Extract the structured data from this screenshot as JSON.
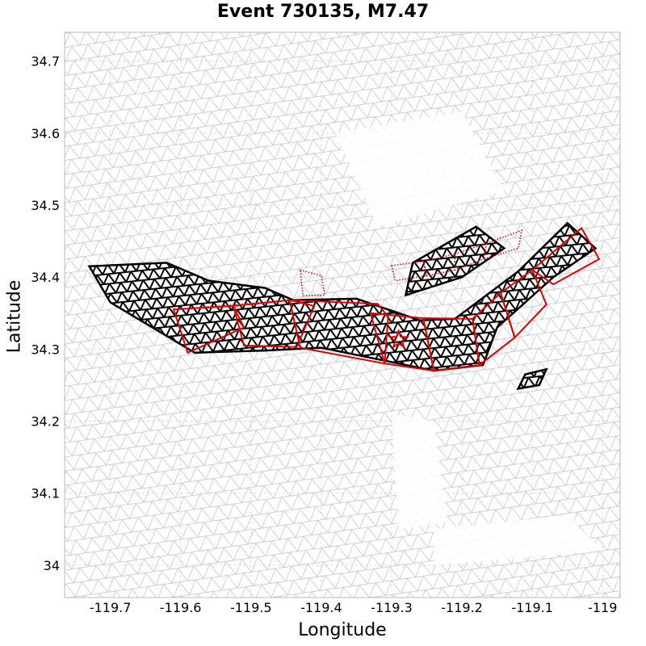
{
  "chart_data": {
    "type": "scatter",
    "title": "Event 730135, M7.47",
    "xlabel": "Longitude",
    "ylabel": "Latitude",
    "xlim": [
      -119.765,
      -118.975
    ],
    "ylim": [
      33.955,
      34.74
    ],
    "grid": true,
    "x_ticks": [
      -119.7,
      -119.6,
      -119.5,
      -119.4,
      -119.3,
      -119.2,
      -119.1,
      -119.0
    ],
    "x_tick_labels": [
      "-119.7",
      "-119.6",
      "-119.5",
      "-119.4",
      "-119.3",
      "-119.2",
      "-119.1",
      "-119"
    ],
    "y_ticks": [
      34.0,
      34.1,
      34.2,
      34.3,
      34.4,
      34.5,
      34.6,
      34.7
    ],
    "y_tick_labels": [
      "34",
      "34.1",
      "34.2",
      "34.3",
      "34.4",
      "34.5",
      "34.6",
      "34.7"
    ],
    "colors": {
      "background_mesh": "#cccccc",
      "ruptured_mesh": "#000000",
      "fault_outline": "#e00000",
      "hypocenter": "#e00000",
      "grid": "#dddddd"
    },
    "hypocenter": {
      "lon": -119.29,
      "lat": 34.313
    },
    "ruptured_patches": [
      {
        "outline": [
          [
            -119.73,
            34.415
          ],
          [
            -119.62,
            34.42
          ],
          [
            -119.56,
            34.395
          ],
          [
            -119.48,
            34.385
          ],
          [
            -119.44,
            34.368
          ],
          [
            -119.35,
            34.37
          ],
          [
            -119.26,
            34.34
          ],
          [
            -119.21,
            34.342
          ],
          [
            -119.12,
            34.408
          ],
          [
            -119.05,
            34.475
          ],
          [
            -119.01,
            34.44
          ],
          [
            -119.07,
            34.4
          ],
          [
            -119.15,
            34.33
          ],
          [
            -119.17,
            34.278
          ],
          [
            -119.24,
            34.27
          ],
          [
            -119.32,
            34.286
          ],
          [
            -119.4,
            34.302
          ],
          [
            -119.48,
            34.298
          ],
          [
            -119.58,
            34.295
          ],
          [
            -119.7,
            34.365
          ]
        ]
      },
      {
        "outline": [
          [
            -119.27,
            34.42
          ],
          [
            -119.18,
            34.47
          ],
          [
            -119.14,
            34.44
          ],
          [
            -119.2,
            34.4
          ],
          [
            -119.28,
            34.375
          ]
        ]
      },
      {
        "outline": [
          [
            -119.11,
            34.265
          ],
          [
            -119.08,
            34.272
          ],
          [
            -119.09,
            34.25
          ],
          [
            -119.12,
            34.245
          ]
        ]
      }
    ],
    "fault_segments": [
      {
        "style": "solid",
        "points": [
          [
            -119.61,
            34.355
          ],
          [
            -119.525,
            34.36
          ],
          [
            -119.51,
            34.33
          ],
          [
            -119.59,
            34.295
          ]
        ]
      },
      {
        "style": "solid",
        "points": [
          [
            -119.525,
            34.36
          ],
          [
            -119.445,
            34.368
          ],
          [
            -119.41,
            34.36
          ],
          [
            -119.435,
            34.303
          ],
          [
            -119.51,
            34.305
          ]
        ]
      },
      {
        "style": "solid",
        "points": [
          [
            -119.445,
            34.368
          ],
          [
            -119.32,
            34.363
          ],
          [
            -119.305,
            34.345
          ],
          [
            -119.31,
            34.28
          ],
          [
            -119.43,
            34.302
          ]
        ]
      },
      {
        "style": "solid",
        "points": [
          [
            -119.33,
            34.35
          ],
          [
            -119.255,
            34.343
          ],
          [
            -119.24,
            34.27
          ],
          [
            -119.31,
            34.28
          ]
        ]
      },
      {
        "style": "solid",
        "points": [
          [
            -119.255,
            34.343
          ],
          [
            -119.185,
            34.342
          ],
          [
            -119.175,
            34.278
          ],
          [
            -119.24,
            34.27
          ]
        ]
      },
      {
        "style": "solid",
        "points": [
          [
            -119.185,
            34.342
          ],
          [
            -119.145,
            34.378
          ],
          [
            -119.125,
            34.316
          ],
          [
            -119.175,
            34.278
          ]
        ]
      },
      {
        "style": "solid",
        "points": [
          [
            -119.145,
            34.378
          ],
          [
            -119.1,
            34.41
          ],
          [
            -119.08,
            34.362
          ],
          [
            -119.125,
            34.316
          ]
        ]
      },
      {
        "style": "solid",
        "points": [
          [
            -119.1,
            34.41
          ],
          [
            -119.03,
            34.468
          ],
          [
            -119.005,
            34.425
          ],
          [
            -119.07,
            34.39
          ]
        ]
      },
      {
        "style": "dotted",
        "points": [
          [
            -119.61,
            34.355
          ],
          [
            -119.445,
            34.368
          ]
        ]
      },
      {
        "style": "dotted",
        "points": [
          [
            -119.43,
            34.41
          ],
          [
            -119.4,
            34.402
          ],
          [
            -119.395,
            34.375
          ],
          [
            -119.426,
            34.374
          ]
        ]
      },
      {
        "style": "dotted",
        "points": [
          [
            -119.3,
            34.416
          ],
          [
            -119.255,
            34.422
          ],
          [
            -119.25,
            34.402
          ],
          [
            -119.295,
            34.395
          ]
        ]
      },
      {
        "style": "dotted",
        "points": [
          [
            -119.255,
            34.422
          ],
          [
            -119.21,
            34.432
          ],
          [
            -119.21,
            34.41
          ],
          [
            -119.25,
            34.402
          ]
        ]
      },
      {
        "style": "dotted",
        "points": [
          [
            -119.21,
            34.432
          ],
          [
            -119.165,
            34.447
          ],
          [
            -119.17,
            34.425
          ],
          [
            -119.21,
            34.41
          ]
        ]
      },
      {
        "style": "dotted",
        "points": [
          [
            -119.165,
            34.447
          ],
          [
            -119.115,
            34.465
          ],
          [
            -119.12,
            34.44
          ],
          [
            -119.17,
            34.425
          ]
        ]
      }
    ]
  }
}
